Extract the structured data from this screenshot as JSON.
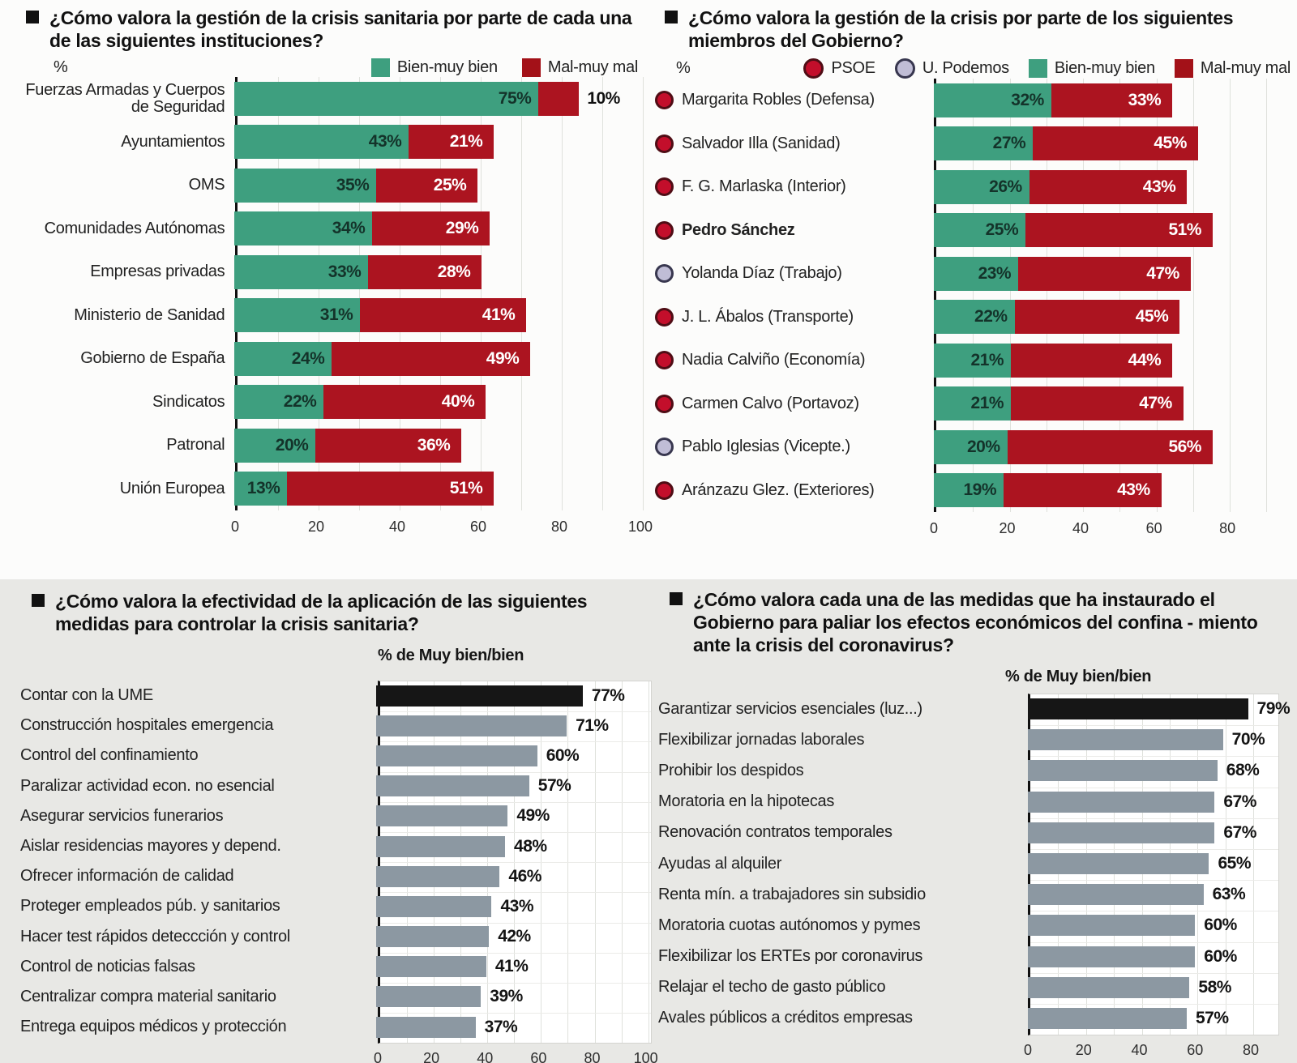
{
  "chart_data": [
    {
      "id": "institutions",
      "type": "bar",
      "orientation": "horizontal",
      "stacked": true,
      "title": "¿Cómo valora la gestión de la crisis sanitaria por parte de cada una de las siguientes instituciones?",
      "unit": "%",
      "legend": [
        {
          "name": "Bien-muy bien",
          "color": "#3e9f7f",
          "shape": "square"
        },
        {
          "name": "Mal-muy mal",
          "color": "#a31118",
          "shape": "square"
        }
      ],
      "legend_position": "top-right",
      "grid": true,
      "xlim": [
        0,
        101
      ],
      "xticks": [
        0,
        20,
        40,
        60,
        80,
        100
      ],
      "categories": [
        "Fuerzas Armadas y Cuerpos de Seguridad",
        "Ayuntamientos",
        "OMS",
        "Comunidades Autónomas",
        "Empresas privadas",
        "Ministerio de Sanidad",
        "Gobierno de España",
        "Sindicatos",
        "Patronal",
        "Unión Europea"
      ],
      "series": [
        {
          "name": "Bien-muy bien",
          "color": "#3e9f7f",
          "values": [
            75,
            43,
            35,
            34,
            33,
            31,
            24,
            22,
            20,
            13
          ]
        },
        {
          "name": "Mal-muy mal",
          "color": "#ac1420",
          "values": [
            10,
            21,
            25,
            29,
            28,
            41,
            49,
            40,
            36,
            51
          ]
        }
      ]
    },
    {
      "id": "government-members",
      "type": "bar",
      "orientation": "horizontal",
      "stacked": true,
      "title": "¿Cómo valora la gestión de la crisis por parte de los siguientes miembros del Gobierno?",
      "unit": "%",
      "legend": [
        {
          "name": "PSOE",
          "color": "#c30e2b",
          "border": "#4f0d15",
          "shape": "circle"
        },
        {
          "name": "U. Podemos",
          "color": "#c0bdd6",
          "border": "#38374f",
          "shape": "circle"
        },
        {
          "name": "Bien-muy bien",
          "color": "#3e9f7f",
          "shape": "square"
        },
        {
          "name": "Mal-muy mal",
          "color": "#a31118",
          "shape": "square"
        }
      ],
      "legend_position": "top-right",
      "grid": true,
      "xlim": [
        0,
        95
      ],
      "xticks": [
        0,
        20,
        40,
        60,
        80
      ],
      "categories": [
        "Margarita Robles (Defensa)",
        "Salvador Illa (Sanidad)",
        "F. G. Marlaska (Interior)",
        "Pedro Sánchez",
        "Yolanda Díaz (Trabajo)",
        "J. L. Ábalos (Transporte)",
        "Nadia Calviño (Economía)",
        "Carmen Calvo (Portavoz)",
        "Pablo Iglesias (Vicepte.)",
        "Aránzazu Glez. (Exteriores)"
      ],
      "party": [
        "PSOE",
        "PSOE",
        "PSOE",
        "PSOE",
        "UP",
        "PSOE",
        "PSOE",
        "PSOE",
        "UP",
        "PSOE"
      ],
      "bold": [
        false,
        false,
        false,
        true,
        false,
        false,
        false,
        false,
        false,
        false
      ],
      "parties": {
        "PSOE": {
          "fill": "#c30e2b",
          "border": "#4f0d15"
        },
        "UP": {
          "fill": "#c0bdd6",
          "border": "#38374f"
        }
      },
      "series": [
        {
          "name": "Bien-muy bien",
          "color": "#3e9f7f",
          "values": [
            32,
            27,
            26,
            25,
            23,
            22,
            21,
            21,
            20,
            19
          ]
        },
        {
          "name": "Mal-muy mal",
          "color": "#ac1420",
          "values": [
            33,
            45,
            43,
            51,
            47,
            45,
            44,
            47,
            56,
            43
          ]
        }
      ]
    },
    {
      "id": "sanitary-measures",
      "type": "bar",
      "orientation": "horizontal",
      "title": "¿Cómo valora la efectividad de la aplicación de las siguientes medidas para controlar la crisis sanitaria?",
      "subtitle": "% de Muy bien/bien",
      "grid": true,
      "highlight_first": true,
      "bar_color": "#8c98a2",
      "highlight_color": "#161616",
      "xlim": [
        0,
        101
      ],
      "xticks": [
        0,
        20,
        40,
        60,
        80,
        100
      ],
      "categories": [
        "Contar con la UME",
        "Construcción hospitales emergencia",
        "Control del confinamiento",
        "Paralizar actividad econ. no esencial",
        "Asegurar servicios funerarios",
        "Aislar residencias mayores y depend.",
        "Ofrecer información de calidad",
        "Proteger empleados púb. y sanitarios",
        "Hacer test rápidos deteccción y control",
        "Control de noticias falsas",
        "Centralizar compra material sanitario",
        "Entrega equipos médicos y protección"
      ],
      "values": [
        77,
        71,
        60,
        57,
        49,
        48,
        46,
        43,
        42,
        41,
        39,
        37
      ]
    },
    {
      "id": "economic-measures",
      "type": "bar",
      "orientation": "horizontal",
      "title": "¿Cómo valora cada una de las medidas que ha instaurado el Gobierno para paliar los efectos económicos del confina - miento ante la crisis del coronavirus?",
      "subtitle": "% de Muy bien/bien",
      "grid": true,
      "highlight_first": true,
      "bar_color": "#8c98a2",
      "highlight_color": "#161616",
      "xlim": [
        0,
        89
      ],
      "xticks": [
        0,
        20,
        40,
        60,
        80
      ],
      "categories": [
        "Garantizar servicios esenciales (luz...)",
        "Flexibilizar jornadas laborales",
        "Prohibir los despidos",
        "Moratoria en la hipotecas",
        "Renovación contratos temporales",
        "Ayudas al alquiler",
        "Renta mín. a trabajadores sin subsidio",
        "Moratoria cuotas autónomos y pymes",
        "Flexibilizar los ERTEs por coronavirus",
        "Relajar el techo de gasto público",
        "Avales públicos a créditos empresas"
      ],
      "values": [
        79,
        70,
        68,
        67,
        67,
        65,
        63,
        60,
        60,
        58,
        57
      ]
    }
  ]
}
